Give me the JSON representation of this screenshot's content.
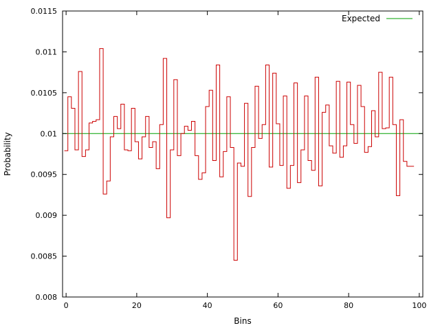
{
  "chart_data": {
    "type": "line",
    "style": "step",
    "xlabel": "Bins",
    "ylabel": "Probability",
    "xlim": [
      -1,
      101
    ],
    "ylim": [
      0.008,
      0.0115
    ],
    "x_ticks": [
      0,
      20,
      40,
      60,
      80,
      100
    ],
    "x_tick_labels": [
      "0",
      "20",
      "40",
      "60",
      "80",
      "100"
    ],
    "y_ticks": [
      0.008,
      0.0085,
      0.009,
      0.0095,
      0.01,
      0.0105,
      0.011,
      0.0115
    ],
    "y_tick_labels": [
      "0.008",
      "0.0085",
      "0.009",
      "0.0095",
      "0.01",
      "0.0105",
      "0.011",
      "0.0115"
    ],
    "grid": false,
    "legend_position": "top-right",
    "series": [
      {
        "color": "#cc0000",
        "x": [
          0,
          1,
          2,
          3,
          4,
          5,
          6,
          7,
          8,
          9,
          10,
          11,
          12,
          13,
          14,
          15,
          16,
          17,
          18,
          19,
          20,
          21,
          22,
          23,
          24,
          25,
          26,
          27,
          28,
          29,
          30,
          31,
          32,
          33,
          34,
          35,
          36,
          37,
          38,
          39,
          40,
          41,
          42,
          43,
          44,
          45,
          46,
          47,
          48,
          49,
          50,
          51,
          52,
          53,
          54,
          55,
          56,
          57,
          58,
          59,
          60,
          61,
          62,
          63,
          64,
          65,
          66,
          67,
          68,
          69,
          70,
          71,
          72,
          73,
          74,
          75,
          76,
          77,
          78,
          79,
          80,
          81,
          82,
          83,
          84,
          85,
          86,
          87,
          88,
          89,
          90,
          91,
          92,
          93,
          94,
          95,
          96,
          97,
          98
        ],
        "values": [
          0.00979,
          0.01045,
          0.01031,
          0.0098,
          0.01076,
          0.00972,
          0.0098,
          0.01013,
          0.01015,
          0.01017,
          0.01104,
          0.00926,
          0.00942,
          0.00996,
          0.01021,
          0.01006,
          0.01036,
          0.0098,
          0.00979,
          0.01031,
          0.0099,
          0.00969,
          0.00996,
          0.01021,
          0.00983,
          0.0099,
          0.00957,
          0.01011,
          0.01092,
          0.00897,
          0.0098,
          0.01066,
          0.00973,
          0.01,
          0.01009,
          0.01004,
          0.01015,
          0.00973,
          0.00944,
          0.00952,
          0.01033,
          0.01053,
          0.00967,
          0.01084,
          0.00947,
          0.00978,
          0.01045,
          0.00983,
          0.00845,
          0.00964,
          0.0096,
          0.01037,
          0.00923,
          0.00983,
          0.01058,
          0.00994,
          0.01011,
          0.01084,
          0.00959,
          0.01074,
          0.01012,
          0.00961,
          0.01046,
          0.00933,
          0.00961,
          0.01062,
          0.0094,
          0.0098,
          0.01046,
          0.00967,
          0.00955,
          0.01069,
          0.00936,
          0.01026,
          0.01035,
          0.00985,
          0.00976,
          0.01064,
          0.00971,
          0.00985,
          0.01063,
          0.01011,
          0.00988,
          0.01059,
          0.01033,
          0.00977,
          0.00984,
          0.01028,
          0.00996,
          0.01075,
          0.01006,
          0.01007,
          0.01069,
          0.01011,
          0.00924,
          0.01017,
          0.00966,
          0.0096,
          0.0096
        ]
      },
      {
        "name": "Expected",
        "color": "#00a000",
        "constant": 0.01
      }
    ]
  }
}
